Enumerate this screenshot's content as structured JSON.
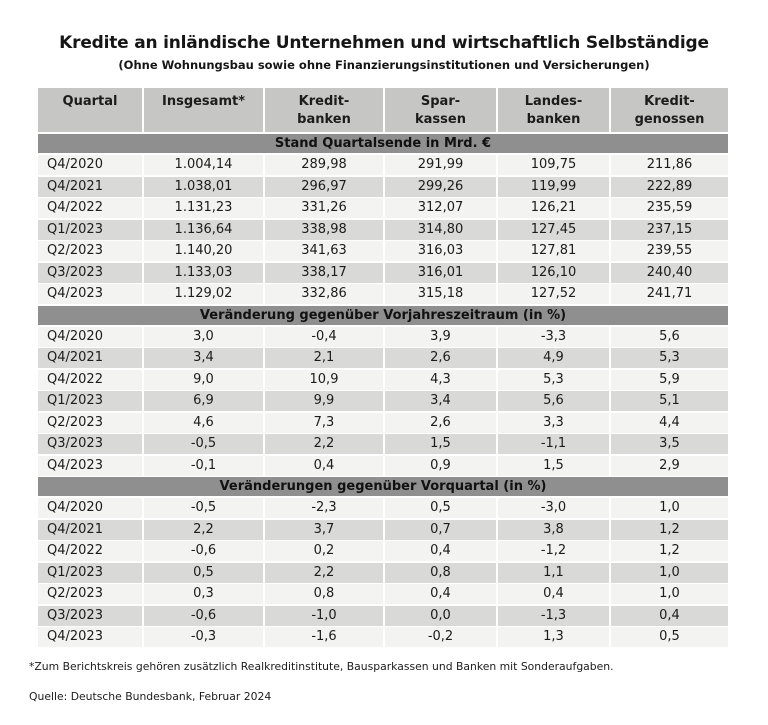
{
  "title": "Kredite an inländische Unternehmen und wirtschaftlich Selbständige",
  "subtitle": "(Ohne Wohnungsbau sowie ohne Finanzierungsinstitutionen und Versicherungen)",
  "footnote": "*Zum Berichtskreis gehören zusätzlich Realkreditinstitute, Bausparkassen und Banken mit Sonderaufgaben.",
  "source": "Quelle: Deutsche Bundesbank, Februar 2024",
  "colors": {
    "header_bg": "#c6c6c4",
    "section_bg": "#8f8f8f",
    "row_light": "#f3f3f1",
    "row_dark": "#d9d9d7",
    "text": "#1c1c1c"
  },
  "chart_data": {
    "type": "table",
    "columns": [
      {
        "line1": "Quartal",
        "line2": ""
      },
      {
        "line1": "Insgesamt*",
        "line2": ""
      },
      {
        "line1": "Kredit-",
        "line2": "banken"
      },
      {
        "line1": "Spar-",
        "line2": "kassen"
      },
      {
        "line1": "Landes-",
        "line2": "banken"
      },
      {
        "line1": "Kredit-",
        "line2": "genossen"
      }
    ],
    "sections": [
      {
        "header": "Stand Quartalsende in Mrd. €",
        "rows": [
          {
            "quartal": "Q4/2020",
            "values": [
              "1.004,14",
              "289,98",
              "291,99",
              "109,75",
              "211,86"
            ]
          },
          {
            "quartal": "Q4/2021",
            "values": [
              "1.038,01",
              "296,97",
              "299,26",
              "119,99",
              "222,89"
            ]
          },
          {
            "quartal": "Q4/2022",
            "values": [
              "1.131,23",
              "331,26",
              "312,07",
              "126,21",
              "235,59"
            ]
          },
          {
            "quartal": "Q1/2023",
            "values": [
              "1.136,64",
              "338,98",
              "314,80",
              "127,45",
              "237,15"
            ]
          },
          {
            "quartal": "Q2/2023",
            "values": [
              "1.140,20",
              "341,63",
              "316,03",
              "127,81",
              "239,55"
            ]
          },
          {
            "quartal": "Q3/2023",
            "values": [
              "1.133,03",
              "338,17",
              "316,01",
              "126,10",
              "240,40"
            ]
          },
          {
            "quartal": "Q4/2023",
            "values": [
              "1.129,02",
              "332,86",
              "315,18",
              "127,52",
              "241,71"
            ]
          }
        ]
      },
      {
        "header": "Veränderung gegenüber Vorjahreszeitraum (in %)",
        "rows": [
          {
            "quartal": "Q4/2020",
            "values": [
              "3,0",
              "-0,4",
              "3,9",
              "-3,3",
              "5,6"
            ]
          },
          {
            "quartal": "Q4/2021",
            "values": [
              "3,4",
              "2,1",
              "2,6",
              "4,9",
              "5,3"
            ]
          },
          {
            "quartal": "Q4/2022",
            "values": [
              "9,0",
              "10,9",
              "4,3",
              "5,3",
              "5,9"
            ]
          },
          {
            "quartal": "Q1/2023",
            "values": [
              "6,9",
              "9,9",
              "3,4",
              "5,6",
              "5,1"
            ]
          },
          {
            "quartal": "Q2/2023",
            "values": [
              "4,6",
              "7,3",
              "2,6",
              "3,3",
              "4,4"
            ]
          },
          {
            "quartal": "Q3/2023",
            "values": [
              "-0,5",
              "2,2",
              "1,5",
              "-1,1",
              "3,5"
            ]
          },
          {
            "quartal": "Q4/2023",
            "values": [
              "-0,1",
              "0,4",
              "0,9",
              "1,5",
              "2,9"
            ]
          }
        ]
      },
      {
        "header": "Veränderungen gegenüber Vorquartal (in %)",
        "rows": [
          {
            "quartal": "Q4/2020",
            "values": [
              "-0,5",
              "-2,3",
              "0,5",
              "-3,0",
              "1,0"
            ]
          },
          {
            "quartal": "Q4/2021",
            "values": [
              "2,2",
              "3,7",
              "0,7",
              "3,8",
              "1,2"
            ]
          },
          {
            "quartal": "Q4/2022",
            "values": [
              "-0,6",
              "0,2",
              "0,4",
              "-1,2",
              "1,2"
            ]
          },
          {
            "quartal": "Q1/2023",
            "values": [
              "0,5",
              "2,2",
              "0,8",
              "1,1",
              "1,0"
            ]
          },
          {
            "quartal": "Q2/2023",
            "values": [
              "0,3",
              "0,8",
              "0,4",
              "0,4",
              "1,0"
            ]
          },
          {
            "quartal": "Q3/2023",
            "values": [
              "-0,6",
              "-1,0",
              "0,0",
              "-1,3",
              "0,4"
            ]
          },
          {
            "quartal": "Q4/2023",
            "values": [
              "-0,3",
              "-1,6",
              "-0,2",
              "1,3",
              "0,5"
            ]
          }
        ]
      }
    ]
  }
}
